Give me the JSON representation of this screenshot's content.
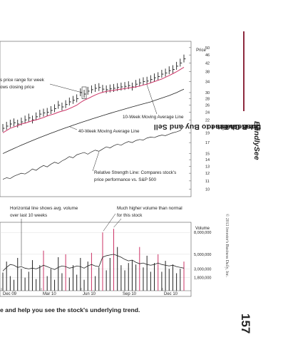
{
  "chart_data": {
    "type": "line",
    "price_label": "Price",
    "price_ticks": [
      "50",
      "46",
      "42",
      "38",
      "34",
      "30",
      "28",
      "26",
      "24",
      "22",
      "19",
      "17",
      "15",
      "14",
      "13",
      "12",
      "11",
      "10"
    ],
    "volume_label": "Volume",
    "volume_ticks": [
      "8,000,000",
      "5,000,000",
      "3,000,000",
      "1,800,000"
    ],
    "x_tick_labels": [
      "Dec 09",
      "Mar 10",
      "Jun 10",
      "Sep 10",
      "Dec 10"
    ],
    "series": [
      {
        "name": "10-Week Moving Average Line",
        "color": "#cc3366"
      },
      {
        "name": "40-Week Moving Average Line",
        "color": "#222222"
      },
      {
        "name": "Relative Strength Line",
        "color": "#222222"
      }
    ],
    "annotations": [
      "s price range for week",
      "ows closing price",
      "10-Week Moving Average Line",
      "40-Week Moving Average Line",
      "Relative Strength Line: Compares stock's",
      "price performance vs. S&P 500",
      "Horizontal line shows avg. volume",
      "over last 10 weeks",
      "Much higher volume than normal",
      "for this stock"
    ],
    "price_weekly_close": [
      20,
      20.5,
      21,
      21.3,
      21,
      21.5,
      22,
      22.5,
      22,
      22.8,
      23.5,
      23.8,
      24,
      24.5,
      25,
      26,
      25.5,
      26.2,
      27,
      27.5,
      28,
      30,
      29.5,
      30.5,
      31,
      31.5,
      31.8,
      31.2,
      31,
      31.3,
      31.5,
      31.8,
      32,
      32.2,
      32.5,
      32,
      33,
      33.5,
      34,
      34.2,
      34.8,
      35.5,
      36,
      37,
      37.5,
      38.5,
      39,
      40.5,
      42,
      44
    ],
    "ma10": [
      19,
      19.5,
      20,
      20.3,
      20.6,
      21,
      21.2,
      21.5,
      21.8,
      22,
      22.3,
      22.6,
      23,
      23.3,
      23.6,
      24,
      24.3,
      24.6,
      25,
      25.5,
      26,
      26.8,
      27.5,
      28,
      28.6,
      29.2,
      29.7,
      30.1,
      30.4,
      30.6,
      30.8,
      31,
      31.2,
      31.4,
      31.6,
      31.8,
      32,
      32.3,
      32.7,
      33,
      33.5,
      34,
      34.5,
      35,
      35.7,
      36.4,
      37.2,
      38,
      39,
      40
    ],
    "ma40": [
      15,
      15.3,
      15.6,
      15.9,
      16.2,
      16.5,
      16.8,
      17.1,
      17.4,
      17.7,
      18,
      18.3,
      18.6,
      18.9,
      19.2,
      19.5,
      19.8,
      20.1,
      20.4,
      20.7,
      21,
      21.3,
      21.6,
      21.9,
      22.2,
      22.5,
      22.8,
      23.1,
      23.4,
      23.7,
      24,
      24.3,
      24.6,
      24.9,
      25.2,
      25.5,
      25.8,
      26.1,
      26.4,
      26.7,
      27,
      27.4,
      27.8,
      28.2,
      28.6,
      29,
      29.5,
      30,
      30.6,
      31.2
    ],
    "rs_line": [
      11.2,
      11.4,
      11.3,
      11.6,
      11.8,
      12,
      11.9,
      12.2,
      12.6,
      12.4,
      12.8,
      13.1,
      12.9,
      13.3,
      13.6,
      13.4,
      13.8,
      14.1,
      14.5,
      14.3,
      14.8,
      15,
      15.2,
      14.9,
      15.3,
      15.6,
      15.4,
      15.8,
      16.2,
      16,
      16.4,
      16.7,
      16.5,
      16.9,
      17.2,
      17,
      17.4,
      17.6,
      17.5,
      17.9,
      18.1,
      18,
      18.3,
      18.5,
      18.4,
      18.7,
      19,
      19.2,
      19.5,
      20.5
    ],
    "volume": [
      2.5,
      4,
      2,
      1.5,
      4.5,
      3,
      1.8,
      2.6,
      4.2,
      1.6,
      3.5,
      5.5,
      2,
      3,
      1.5,
      4.6,
      2.4,
      5,
      1.8,
      3.5,
      2.2,
      4.5,
      1.5,
      4,
      5.2,
      2,
      3.2,
      8,
      2.8,
      4.5,
      8.5,
      6,
      3.5,
      2.8,
      3.8,
      4.2,
      3.6,
      6,
      3.2,
      4.8,
      2.6,
      3.8,
      5,
      2.6,
      4.1,
      3,
      3.6,
      2.4,
      3,
      4
    ],
    "volume_highlight": [
      0,
      0,
      0,
      0,
      0,
      0,
      0,
      0,
      0,
      0,
      0,
      1,
      0,
      0,
      0,
      0,
      0,
      1,
      0,
      0,
      0,
      0,
      0,
      0,
      1,
      0,
      0,
      1,
      0,
      0,
      1,
      0,
      0,
      0,
      0,
      0,
      0,
      1,
      0,
      0,
      0,
      0,
      1,
      0,
      0,
      0,
      0,
      0,
      0,
      1
    ],
    "volume_avg_10wk": [
      2.7,
      3.2,
      3.6,
      3.5,
      3.2,
      3.3,
      3.1,
      3,
      3.1,
      3,
      3.2,
      3.5,
      3.3,
      3.1,
      2.9,
      3.2,
      3.4,
      3.3,
      3.1,
      3.2,
      3.4,
      3.3,
      3.1,
      3.4,
      3.6,
      3.4,
      3.3,
      4.6,
      4.8,
      4.9,
      5,
      4.8,
      4.6,
      4.3,
      4.1,
      4.2,
      3.9,
      3.7,
      3.8,
      3.6,
      3.5,
      3.6,
      3.8,
      3.6,
      3.5,
      3.4,
      3.5,
      3.3,
      3.2,
      3.1
    ]
  },
  "sidebar": {
    "title_part1": "Don't Invest ",
    "title_italic1": "Blindly",
    "title_part2": ": Use Charts to ",
    "title_italic2": "See",
    "title_part3": " the Best Time to Buy and Sell",
    "page_number": "157",
    "copyright": "© 2013 Investor's Business Daily, Inc."
  },
  "caption": "e and help you see the stock's underlying trend."
}
